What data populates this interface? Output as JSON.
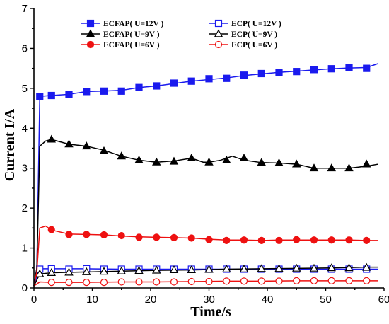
{
  "chart_data": {
    "type": "line",
    "xlabel": "Time/s",
    "ylabel": "Current  I/A",
    "xlim": [
      0,
      60
    ],
    "ylim": [
      0,
      7
    ],
    "xticks": [
      "0",
      "10",
      "20",
      "30",
      "40",
      "50",
      "60"
    ],
    "yticks": [
      "0",
      "1",
      "2",
      "3",
      "4",
      "5",
      "6",
      "7"
    ],
    "legend_position": "top",
    "series": [
      {
        "name": "ECFAP( U=12V )",
        "color": "#1a1aee",
        "marker": "square",
        "filled": true,
        "line": [
          [
            0,
            0.05
          ],
          [
            0.5,
            0.5
          ],
          [
            1,
            4.8
          ],
          [
            3,
            4.82
          ],
          [
            6,
            4.85
          ],
          [
            9,
            4.92
          ],
          [
            12,
            4.93
          ],
          [
            15,
            4.95
          ],
          [
            18,
            5.02
          ],
          [
            21,
            5.06
          ],
          [
            24,
            5.12
          ],
          [
            27,
            5.18
          ],
          [
            30,
            5.22
          ],
          [
            33,
            5.26
          ],
          [
            36,
            5.32
          ],
          [
            39,
            5.36
          ],
          [
            42,
            5.4
          ],
          [
            45,
            5.43
          ],
          [
            48,
            5.46
          ],
          [
            51,
            5.49
          ],
          [
            54,
            5.51
          ],
          [
            57,
            5.52
          ],
          [
            59,
            5.62
          ]
        ],
        "points": [
          [
            1,
            4.8
          ],
          [
            3,
            4.82
          ],
          [
            6,
            4.85
          ],
          [
            9,
            4.92
          ],
          [
            12,
            4.93
          ],
          [
            15,
            4.93
          ],
          [
            18,
            5.02
          ],
          [
            21,
            5.06
          ],
          [
            24,
            5.13
          ],
          [
            27,
            5.18
          ],
          [
            30,
            5.24
          ],
          [
            33,
            5.25
          ],
          [
            36,
            5.33
          ],
          [
            39,
            5.37
          ],
          [
            42,
            5.4
          ],
          [
            45,
            5.42
          ],
          [
            48,
            5.47
          ],
          [
            51,
            5.49
          ],
          [
            54,
            5.52
          ],
          [
            57,
            5.5
          ]
        ]
      },
      {
        "name": "ECP( U=12V )",
        "color": "#1a1aee",
        "marker": "square",
        "filled": false,
        "line": [
          [
            0,
            0.05
          ],
          [
            0.5,
            0.3
          ],
          [
            1,
            0.48
          ],
          [
            3,
            0.48
          ],
          [
            9,
            0.48
          ],
          [
            15,
            0.47
          ],
          [
            21,
            0.47
          ],
          [
            27,
            0.47
          ],
          [
            33,
            0.47
          ],
          [
            39,
            0.47
          ],
          [
            45,
            0.47
          ],
          [
            51,
            0.47
          ],
          [
            57,
            0.47
          ],
          [
            59,
            0.47
          ]
        ],
        "points": [
          [
            1,
            0.47
          ],
          [
            3,
            0.48
          ],
          [
            6,
            0.47
          ],
          [
            9,
            0.48
          ],
          [
            12,
            0.47
          ],
          [
            15,
            0.47
          ],
          [
            18,
            0.47
          ],
          [
            21,
            0.47
          ],
          [
            24,
            0.47
          ],
          [
            27,
            0.47
          ],
          [
            30,
            0.47
          ],
          [
            33,
            0.47
          ],
          [
            36,
            0.47
          ],
          [
            39,
            0.47
          ],
          [
            42,
            0.47
          ],
          [
            45,
            0.47
          ],
          [
            48,
            0.47
          ],
          [
            51,
            0.47
          ],
          [
            54,
            0.47
          ],
          [
            57,
            0.47
          ]
        ]
      },
      {
        "name": "ECFAP( U=9V )",
        "color": "#000000",
        "marker": "triangle",
        "filled": true,
        "line": [
          [
            0,
            0.05
          ],
          [
            0.5,
            0.5
          ],
          [
            1,
            3.55
          ],
          [
            2,
            3.68
          ],
          [
            3,
            3.72
          ],
          [
            6,
            3.6
          ],
          [
            9,
            3.55
          ],
          [
            12,
            3.45
          ],
          [
            15,
            3.3
          ],
          [
            18,
            3.2
          ],
          [
            21,
            3.15
          ],
          [
            24,
            3.18
          ],
          [
            27,
            3.25
          ],
          [
            29,
            3.15
          ],
          [
            30,
            3.15
          ],
          [
            32,
            3.2
          ],
          [
            34,
            3.3
          ],
          [
            36,
            3.2
          ],
          [
            39,
            3.14
          ],
          [
            42,
            3.13
          ],
          [
            45,
            3.1
          ],
          [
            48,
            3.0
          ],
          [
            51,
            3.0
          ],
          [
            54,
            3.0
          ],
          [
            57,
            3.05
          ],
          [
            59,
            3.1
          ]
        ],
        "points": [
          [
            3,
            3.72
          ],
          [
            6,
            3.6
          ],
          [
            9,
            3.55
          ],
          [
            12,
            3.43
          ],
          [
            15,
            3.3
          ],
          [
            18,
            3.2
          ],
          [
            21,
            3.15
          ],
          [
            24,
            3.17
          ],
          [
            27,
            3.25
          ],
          [
            30,
            3.15
          ],
          [
            33,
            3.2
          ],
          [
            36,
            3.25
          ],
          [
            39,
            3.14
          ],
          [
            42,
            3.13
          ],
          [
            45,
            3.1
          ],
          [
            48,
            3.0
          ],
          [
            51,
            3.0
          ],
          [
            54,
            3.0
          ],
          [
            57,
            3.1
          ]
        ]
      },
      {
        "name": "ECP( U=9V )",
        "color": "#000000",
        "marker": "triangle",
        "filled": false,
        "line": [
          [
            0,
            0.05
          ],
          [
            0.5,
            0.2
          ],
          [
            1,
            0.35
          ],
          [
            3,
            0.38
          ],
          [
            9,
            0.4
          ],
          [
            15,
            0.42
          ],
          [
            21,
            0.44
          ],
          [
            27,
            0.45
          ],
          [
            33,
            0.47
          ],
          [
            39,
            0.48
          ],
          [
            45,
            0.49
          ],
          [
            51,
            0.5
          ],
          [
            57,
            0.52
          ],
          [
            59,
            0.52
          ]
        ],
        "points": [
          [
            1,
            0.35
          ],
          [
            3,
            0.38
          ],
          [
            6,
            0.39
          ],
          [
            9,
            0.4
          ],
          [
            12,
            0.41
          ],
          [
            15,
            0.42
          ],
          [
            18,
            0.43
          ],
          [
            21,
            0.44
          ],
          [
            24,
            0.45
          ],
          [
            27,
            0.45
          ],
          [
            30,
            0.46
          ],
          [
            33,
            0.47
          ],
          [
            36,
            0.47
          ],
          [
            39,
            0.48
          ],
          [
            42,
            0.48
          ],
          [
            45,
            0.49
          ],
          [
            48,
            0.49
          ],
          [
            51,
            0.5
          ],
          [
            54,
            0.5
          ],
          [
            57,
            0.51
          ]
        ]
      },
      {
        "name": "ECFAP( U=6V )",
        "color": "#ee1111",
        "marker": "circle",
        "filled": true,
        "line": [
          [
            0,
            0.05
          ],
          [
            0.5,
            0.4
          ],
          [
            1,
            1.5
          ],
          [
            2,
            1.55
          ],
          [
            3,
            1.45
          ],
          [
            6,
            1.35
          ],
          [
            9,
            1.34
          ],
          [
            12,
            1.33
          ],
          [
            15,
            1.3
          ],
          [
            18,
            1.28
          ],
          [
            21,
            1.27
          ],
          [
            24,
            1.26
          ],
          [
            27,
            1.25
          ],
          [
            30,
            1.22
          ],
          [
            33,
            1.2
          ],
          [
            36,
            1.2
          ],
          [
            39,
            1.19
          ],
          [
            42,
            1.2
          ],
          [
            45,
            1.2
          ],
          [
            48,
            1.2
          ],
          [
            51,
            1.2
          ],
          [
            54,
            1.2
          ],
          [
            57,
            1.19
          ],
          [
            59,
            1.19
          ]
        ],
        "points": [
          [
            3,
            1.46
          ],
          [
            6,
            1.34
          ],
          [
            9,
            1.34
          ],
          [
            12,
            1.33
          ],
          [
            15,
            1.31
          ],
          [
            18,
            1.27
          ],
          [
            21,
            1.27
          ],
          [
            24,
            1.26
          ],
          [
            27,
            1.25
          ],
          [
            30,
            1.21
          ],
          [
            33,
            1.19
          ],
          [
            36,
            1.2
          ],
          [
            39,
            1.19
          ],
          [
            42,
            1.19
          ],
          [
            45,
            1.21
          ],
          [
            48,
            1.2
          ],
          [
            51,
            1.2
          ],
          [
            54,
            1.2
          ],
          [
            57,
            1.19
          ]
        ]
      },
      {
        "name": "ECP( U=6V )",
        "color": "#ee1111",
        "marker": "circle",
        "filled": false,
        "line": [
          [
            0,
            0.05
          ],
          [
            0.5,
            0.1
          ],
          [
            1,
            0.15
          ],
          [
            3,
            0.14
          ],
          [
            9,
            0.14
          ],
          [
            15,
            0.15
          ],
          [
            21,
            0.15
          ],
          [
            27,
            0.16
          ],
          [
            33,
            0.17
          ],
          [
            39,
            0.17
          ],
          [
            45,
            0.18
          ],
          [
            51,
            0.18
          ],
          [
            57,
            0.18
          ],
          [
            59,
            0.18
          ]
        ],
        "points": [
          [
            3,
            0.14
          ],
          [
            6,
            0.14
          ],
          [
            9,
            0.14
          ],
          [
            12,
            0.14
          ],
          [
            15,
            0.15
          ],
          [
            18,
            0.15
          ],
          [
            21,
            0.15
          ],
          [
            24,
            0.15
          ],
          [
            27,
            0.16
          ],
          [
            30,
            0.16
          ],
          [
            33,
            0.17
          ],
          [
            36,
            0.17
          ],
          [
            39,
            0.17
          ],
          [
            42,
            0.17
          ],
          [
            45,
            0.18
          ],
          [
            48,
            0.18
          ],
          [
            51,
            0.18
          ],
          [
            54,
            0.18
          ],
          [
            57,
            0.18
          ]
        ]
      }
    ]
  }
}
